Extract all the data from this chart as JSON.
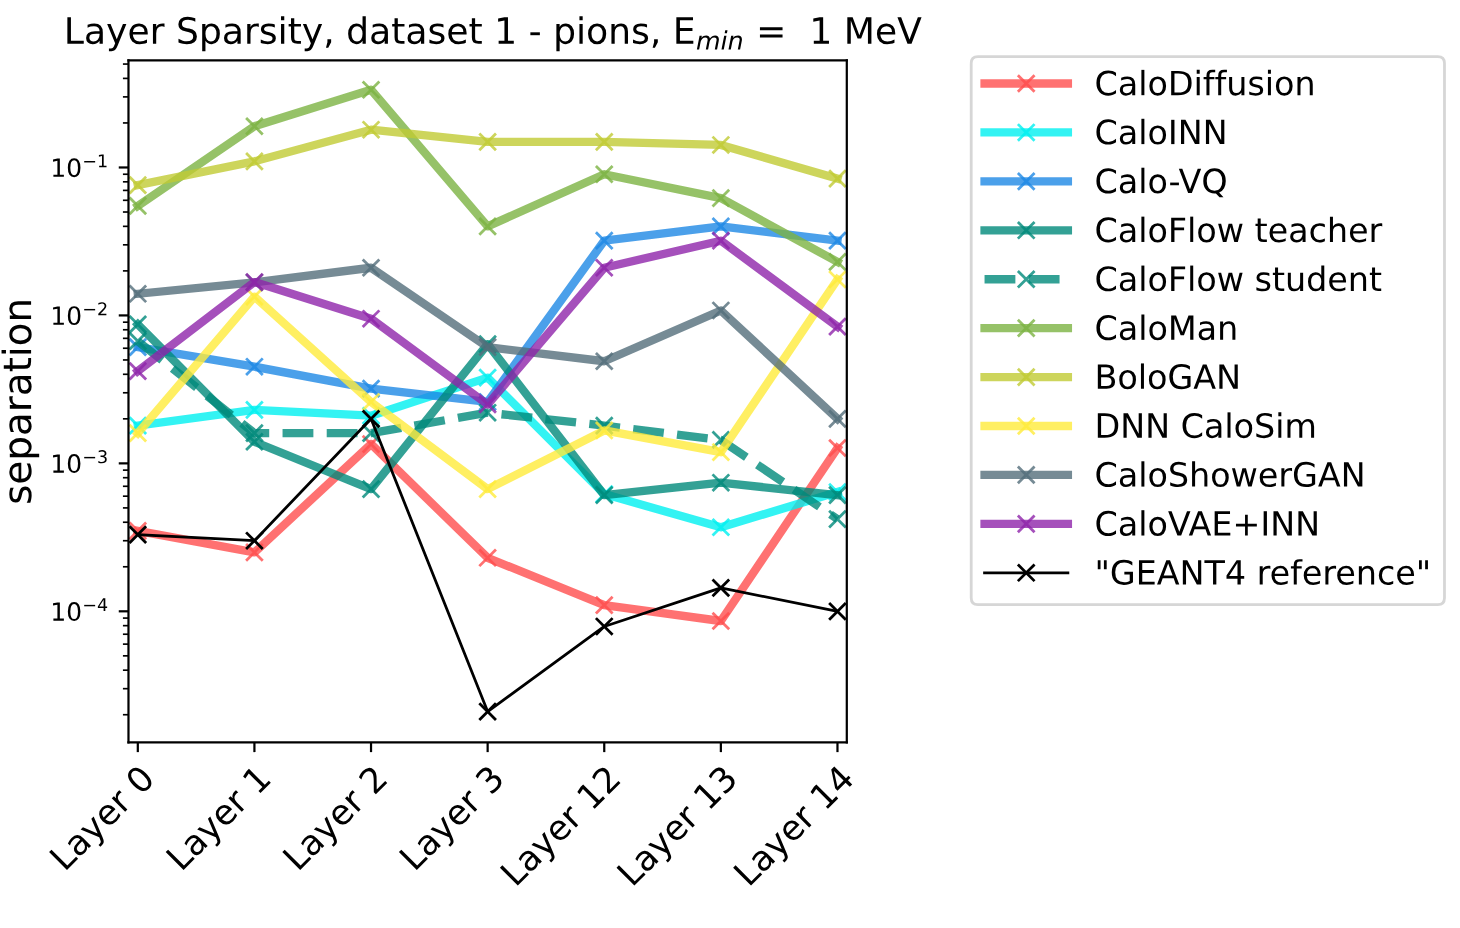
{
  "chart_data": {
    "type": "line",
    "title": "Layer Sparsity, dataset 1 - pions, E$_{min}$ =  1 MeV",
    "ylabel": "separation",
    "categories": [
      "Layer 0",
      "Layer 1",
      "Layer 2",
      "Layer 3",
      "Layer 12",
      "Layer 13",
      "Layer 14"
    ],
    "log": "y",
    "ylim": [
      1.3e-05,
      0.53
    ],
    "yticks": [
      {
        "value": 0.0001,
        "label": "10$^{−4}$"
      },
      {
        "value": 0.001,
        "label": "10$^{−3}$"
      },
      {
        "value": 0.01,
        "label": "10$^{−2}$"
      },
      {
        "value": 0.1,
        "label": "10$^{−1}$"
      }
    ],
    "marker": "cross",
    "grid": false,
    "legend": "right",
    "series": [
      {
        "name": "CaloDiffusion",
        "color": "#ff4d4d",
        "values": [
          0.00035,
          0.00025,
          0.00135,
          0.00023,
          0.00011,
          8.6e-05,
          0.00127
        ]
      },
      {
        "name": "CaloINN",
        "color": "#00f0f0",
        "values": [
          0.0018,
          0.0023,
          0.0021,
          0.0038,
          0.00062,
          0.00037,
          0.00064
        ]
      },
      {
        "name": "Calo-VQ",
        "color": "#1e88e5",
        "values": [
          0.0061,
          0.0045,
          0.0032,
          0.0026,
          0.032,
          0.04,
          0.032
        ]
      },
      {
        "name": "CaloFlow teacher",
        "color": "#00897b",
        "values": [
          0.0087,
          0.0014,
          0.00067,
          0.0064,
          0.00061,
          0.00074,
          0.00061
        ]
      },
      {
        "name": "CaloFlow student",
        "color": "#00897b",
        "line_style": "dashed",
        "values": [
          0.0067,
          0.0016,
          0.0016,
          0.0022,
          0.0018,
          0.00144,
          0.00042
        ]
      },
      {
        "name": "CaloMan",
        "color": "#7cb342",
        "values": [
          0.055,
          0.19,
          0.335,
          0.04,
          0.09,
          0.062,
          0.023
        ]
      },
      {
        "name": "BoloGAN",
        "color": "#c0ca33",
        "values": [
          0.076,
          0.11,
          0.18,
          0.149,
          0.149,
          0.142,
          0.084
        ]
      },
      {
        "name": "DNN CaloSim",
        "color": "#ffeb3b",
        "values": [
          0.0016,
          0.0134,
          0.0026,
          0.00067,
          0.00167,
          0.00119,
          0.0175
        ]
      },
      {
        "name": "CaloShowerGAN",
        "color": "#546e7a",
        "values": [
          0.014,
          0.0167,
          0.021,
          0.0061,
          0.0049,
          0.0108,
          0.002
        ]
      },
      {
        "name": "CaloVAE+INN",
        "color": "#8e24aa",
        "values": [
          0.0042,
          0.0168,
          0.0095,
          0.0025,
          0.021,
          0.032,
          0.0084
        ]
      },
      {
        "name": "\"GEANT4 reference\"",
        "color": "#000000",
        "values": [
          0.00033,
          0.0003,
          0.002,
          2.1e-05,
          7.9e-05,
          0.000144,
          0.0001
        ]
      }
    ]
  }
}
